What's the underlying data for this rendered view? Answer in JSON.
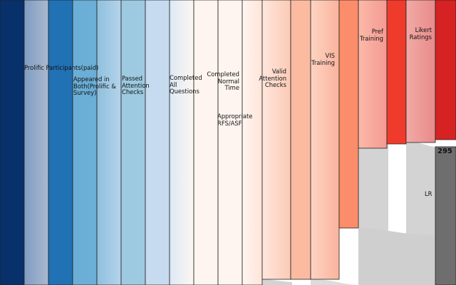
{
  "chart_data": {
    "type": "sankey",
    "title": "",
    "stages": [
      {
        "label": "Prolific Participants(paid)",
        "color": "#08306b"
      },
      {
        "label": "",
        "color": "#8ea5c4"
      },
      {
        "label": "",
        "color": "#2171b5"
      },
      {
        "label": "Appeared in Both(Prolific & Survey)",
        "color": "#6baed6"
      },
      {
        "label": "",
        "color": "#6baed6"
      },
      {
        "label": "Passed Attention Checks",
        "color": "#9ecae1"
      },
      {
        "label": "",
        "color": "#c6dbef"
      },
      {
        "label": "Completed All Questions",
        "color": "#eaf2fa"
      },
      {
        "label": "Completed Normal Time",
        "color": "#fff5f0"
      },
      {
        "label": "Appropriate RFS/ASF",
        "color": "#fff5f0"
      },
      {
        "label": "",
        "color": "#fee0d2"
      },
      {
        "label": "Valid Attention Checks",
        "color": "#fee0d2"
      },
      {
        "label": "",
        "color": "#fcbba1"
      },
      {
        "label": "VIS Training",
        "color": "#fcbba1"
      },
      {
        "label": "",
        "color": "#fc8d6a"
      },
      {
        "label": "Pref Training",
        "color": "#f9a8a0"
      },
      {
        "label": "",
        "color": "#ef3b2c"
      },
      {
        "label": "Likert Ratings",
        "color": "#ee9c9c"
      },
      {
        "label": "",
        "color": "#d62222"
      }
    ],
    "final_node": {
      "label": "LR",
      "value": 295,
      "color": "#6e6e6e"
    }
  }
}
